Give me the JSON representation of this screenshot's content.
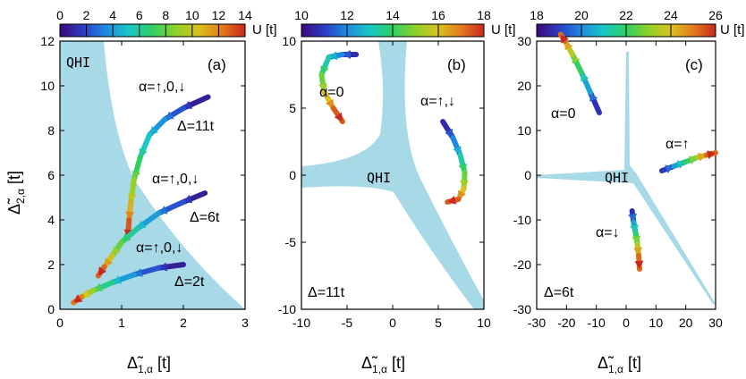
{
  "colors": {
    "region": "#a8d9e6",
    "frame": "#000000",
    "colormap": [
      "#3b0a78",
      "#2b3cc4",
      "#1e8be0",
      "#19c7c4",
      "#2fcf62",
      "#8fd12a",
      "#d8c21e",
      "#e57a1c",
      "#c8281f"
    ]
  },
  "chart_data": [
    {
      "type": "line",
      "panel_label": "(a)",
      "xlabel_main": "Δ̃",
      "xlabel_sub": "1,α",
      "xlabel_unit": " [t]",
      "ylabel_main": "Δ̃",
      "ylabel_sub": "2,α",
      "ylabel_unit": " [t]",
      "xlim": [
        0,
        3
      ],
      "ylim": [
        0,
        12
      ],
      "xticks": [
        0,
        1,
        2,
        3
      ],
      "yticks": [
        0,
        2,
        4,
        6,
        8,
        10,
        12
      ],
      "colorbar": {
        "min": 0,
        "max": 14,
        "ticks": [
          0,
          2,
          4,
          6,
          8,
          10,
          12,
          14
        ],
        "label": "U [t]"
      },
      "region_label": "QHI",
      "annotations": [
        "α=↑,0,↓",
        "Δ=11t",
        "α=↑,0,↓",
        "Δ=6t",
        "α=↑,0,↓",
        "Δ=2t"
      ],
      "series": [
        {
          "label_index": 1,
          "x": [
            2.4,
            2.0,
            1.7,
            1.45,
            1.3,
            1.2,
            1.15,
            1.12,
            1.1
          ],
          "y": [
            9.5,
            9.0,
            8.5,
            7.8,
            6.8,
            5.8,
            4.8,
            4.0,
            3.2
          ],
          "u": [
            0,
            1.5,
            3,
            4.5,
            6,
            8,
            10,
            12,
            14
          ]
        },
        {
          "label_index": 3,
          "x": [
            2.35,
            2.0,
            1.6,
            1.25,
            1.0,
            0.85,
            0.72,
            0.62
          ],
          "y": [
            5.2,
            4.8,
            4.3,
            3.6,
            3.0,
            2.4,
            1.9,
            1.5
          ],
          "u": [
            0,
            1.5,
            3,
            5,
            7,
            9,
            11.5,
            14
          ]
        },
        {
          "label_index": 5,
          "x": [
            2.0,
            1.6,
            1.2,
            0.85,
            0.55,
            0.35,
            0.22
          ],
          "y": [
            2.0,
            1.85,
            1.55,
            1.2,
            0.85,
            0.55,
            0.3
          ],
          "u": [
            0,
            1.5,
            3,
            5,
            7.5,
            10.5,
            14
          ]
        }
      ],
      "label_positions": [
        "0",
        "1",
        "2",
        "3",
        "4",
        "5"
      ]
    },
    {
      "type": "line",
      "panel_label": "(b)",
      "xlabel_main": "Δ̃",
      "xlabel_sub": "1,α",
      "xlabel_unit": " [t]",
      "xlim": [
        -10,
        10
      ],
      "ylim": [
        -10,
        10
      ],
      "xticks": [
        -10,
        -5,
        0,
        5,
        10
      ],
      "yticks": [
        -10,
        -5,
        0,
        5,
        10
      ],
      "colorbar": {
        "min": 10,
        "max": 18,
        "ticks": [
          10,
          12,
          14,
          16,
          18
        ],
        "label": "U [t]"
      },
      "region_label": "QHI",
      "annotations": [
        "α=0",
        "α=↑,↓",
        "Δ=11t"
      ],
      "series": [
        {
          "label_index": 0,
          "x": [
            -4.0,
            -5.5,
            -7.0,
            -7.8,
            -7.5,
            -6.5,
            -5.5
          ],
          "y": [
            9.0,
            9.0,
            8.8,
            7.5,
            6.2,
            5.0,
            4.0
          ],
          "u": [
            10,
            11.3,
            12.6,
            14,
            15.3,
            16.7,
            18
          ]
        },
        {
          "label_index": 1,
          "x": [
            5.5,
            6.6,
            7.4,
            7.9,
            7.8,
            7.2,
            6.0
          ],
          "y": [
            4.0,
            2.8,
            1.5,
            0.2,
            -1.0,
            -1.8,
            -2.0
          ],
          "u": [
            10,
            11.3,
            12.6,
            14,
            15.3,
            16.7,
            18
          ]
        }
      ]
    },
    {
      "type": "line",
      "panel_label": "(c)",
      "xlabel_main": "Δ̃",
      "xlabel_sub": "1,α",
      "xlabel_unit": " [t]",
      "xlim": [
        -30,
        30
      ],
      "ylim": [
        -30,
        30
      ],
      "xticks": [
        -30,
        -20,
        -10,
        0,
        10,
        20,
        30
      ],
      "yticks": [
        -30,
        -20,
        -10,
        0,
        10,
        20,
        30
      ],
      "colorbar": {
        "min": 18,
        "max": 26,
        "ticks": [
          18,
          20,
          22,
          24,
          26
        ],
        "label": "U [t]"
      },
      "region_label": "QHI",
      "annotations": [
        "α=0",
        "α=↑",
        "α=↓",
        "Δ=6t"
      ],
      "series": [
        {
          "label_index": 0,
          "x": [
            -9.0,
            -12.0,
            -15.0,
            -18.0,
            -20.5,
            -22.0
          ],
          "y": [
            14.0,
            18.5,
            23.0,
            27.0,
            30.0,
            31.5
          ],
          "u": [
            18,
            19.6,
            21.2,
            22.8,
            24.4,
            26
          ]
        },
        {
          "label_index": 1,
          "x": [
            12.0,
            16.0,
            20.0,
            24.0,
            27.0,
            30.0
          ],
          "y": [
            1.0,
            2.0,
            3.0,
            4.0,
            4.5,
            5.0
          ],
          "u": [
            18,
            19.6,
            21.2,
            22.8,
            24.4,
            26
          ]
        },
        {
          "label_index": 2,
          "x": [
            2.0,
            2.5,
            3.2,
            3.8,
            4.2,
            4.5
          ],
          "y": [
            -8.0,
            -10.5,
            -13.0,
            -15.5,
            -18.0,
            -21.0
          ],
          "u": [
            18,
            19.6,
            21.2,
            22.8,
            24.4,
            26
          ]
        }
      ]
    }
  ]
}
